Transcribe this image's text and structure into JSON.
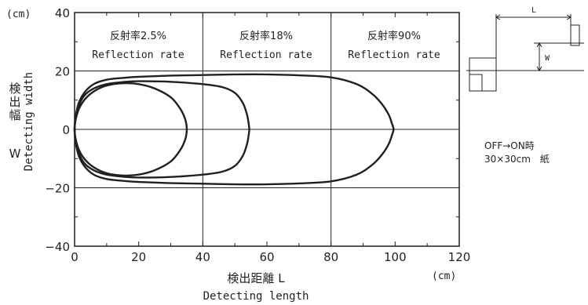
{
  "chart_data": {
    "type": "line",
    "xlabel_jp": "検出距離 L",
    "xlabel_en": "Detecting length",
    "ylabel_jp": [
      "検",
      "出",
      "幅"
    ],
    "ylabel_w": "W",
    "ylabel_en": "Detecting width",
    "x_unit": "(cm)",
    "y_unit": "(cm)",
    "xlim": [
      0,
      120
    ],
    "ylim": [
      -40,
      40
    ],
    "x_ticks": [
      "0",
      "20",
      "40",
      "60",
      "80",
      "100",
      "120"
    ],
    "y_ticks": [
      "40",
      "20",
      "0",
      "−20",
      "−40"
    ],
    "grid": true,
    "regions": [
      {
        "jp": "反射率2.5%",
        "en": "Reflection rate"
      },
      {
        "jp": "反射率18%",
        "en": "Reflection rate"
      },
      {
        "jp": "反射率90%",
        "en": "Reflection rate"
      }
    ],
    "series": [
      {
        "x": [
          0,
          1,
          3,
          6,
          10,
          15,
          20,
          25,
          30,
          33,
          34.5,
          35,
          34.5,
          33,
          30,
          25,
          20,
          15,
          10,
          6,
          3,
          1,
          0
        ],
        "y": [
          0,
          6,
          10,
          13,
          15,
          15.8,
          15.5,
          14,
          11,
          7,
          3.5,
          0,
          -3.5,
          -7,
          -11,
          -14,
          -15.5,
          -15.8,
          -15,
          -13,
          -10,
          -6,
          0
        ]
      },
      {
        "x": [
          0,
          1,
          3,
          6,
          10,
          15,
          20,
          30,
          40,
          46,
          50,
          52.5,
          53.8,
          54.3,
          54.5,
          54.3,
          53.8,
          52.5,
          50,
          46,
          40,
          30,
          20,
          15,
          10,
          6,
          3,
          1,
          0
        ],
        "y": [
          0,
          7,
          11.5,
          14,
          15.5,
          16.2,
          16.5,
          16.3,
          15.5,
          14.5,
          12.5,
          9,
          5,
          2,
          0,
          -2,
          -5,
          -9,
          -12.5,
          -14.5,
          -15.5,
          -16.3,
          -16.5,
          -16.2,
          -15.5,
          -14,
          -11.5,
          -7,
          0
        ]
      },
      {
        "x": [
          0,
          1,
          3,
          6,
          10,
          15,
          20,
          30,
          40,
          50,
          60,
          70,
          80,
          88,
          93,
          96,
          98,
          99,
          99.5,
          99,
          98,
          96,
          93,
          88,
          80,
          70,
          60,
          50,
          40,
          30,
          20,
          15,
          10,
          6,
          3,
          1,
          0
        ],
        "y": [
          0,
          8,
          12.5,
          15.5,
          17,
          17.6,
          18,
          18.4,
          18.6,
          18.8,
          18.8,
          18.5,
          17.8,
          15.5,
          12,
          8.5,
          5,
          2,
          0,
          -2,
          -5,
          -8.5,
          -12,
          -15.5,
          -17.8,
          -18.5,
          -18.8,
          -18.8,
          -18.6,
          -18.4,
          -18,
          -17.6,
          -17,
          -15.5,
          -12.5,
          -8,
          0
        ]
      }
    ]
  },
  "note": {
    "line1": "OFF→ON時",
    "line2": "30×30cm　紙"
  },
  "diagram": {
    "L": "L",
    "W": "W"
  }
}
